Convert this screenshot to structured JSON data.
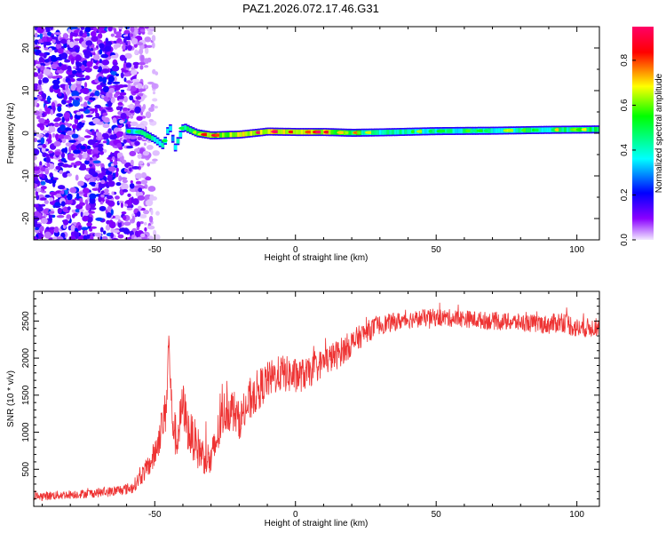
{
  "figure_title": "PAZ1.2026.072.17.46.G31",
  "chart_data": [
    {
      "type": "heatmap",
      "title": "PAZ1.2026.072.17.46.G31",
      "xlabel": "Height of straight line (km)",
      "ylabel": "Frequency (Hz)",
      "xlim": [
        -93,
        108
      ],
      "ylim": [
        -25,
        25
      ],
      "x_ticks": [
        -50,
        0,
        50,
        100
      ],
      "y_ticks": [
        -20,
        -10,
        0,
        10,
        20
      ],
      "colorbar": {
        "label": "Normalized spectral amplitude",
        "range": [
          0.0,
          0.95
        ],
        "ticks": [
          0.0,
          0.2,
          0.4,
          0.6,
          0.8
        ],
        "tick_labels": [
          "0.0",
          "0.2",
          "0.4",
          "0.6",
          "0.8"
        ],
        "colors": [
          "#f2e8ff",
          "#8a00ff",
          "#0000ff",
          "#00ffff",
          "#00ff00",
          "#ffff00",
          "#ff0000",
          "#ff0066"
        ]
      },
      "ridge": {
        "description": "dominant frequency line",
        "x": [
          -60,
          -55,
          -50,
          -47,
          -45,
          -43,
          -40,
          -35,
          -30,
          -20,
          -10,
          0,
          10,
          20,
          30,
          50,
          70,
          90,
          108
        ],
        "frequency": [
          0.5,
          0.3,
          -1.5,
          -3.0,
          2.0,
          -3.5,
          1.5,
          0.0,
          -0.5,
          -0.3,
          0.4,
          0.3,
          0.3,
          0.1,
          0.2,
          0.5,
          0.6,
          0.8,
          0.9
        ],
        "amplitude": [
          0.35,
          0.45,
          0.5,
          0.4,
          0.45,
          0.35,
          0.5,
          0.6,
          0.75,
          0.8,
          0.85,
          0.85,
          0.8,
          0.6,
          0.5,
          0.45,
          0.45,
          0.5,
          0.55
        ]
      },
      "noise_region": {
        "x_range": [
          -93,
          -55
        ],
        "frequency_range": [
          -25,
          25
        ],
        "amplitude_range": [
          0.05,
          0.25
        ]
      }
    },
    {
      "type": "line",
      "xlabel": "Height of straight line (km)",
      "ylabel": "SNR (10 * v/v)",
      "xlim": [
        -93,
        108
      ],
      "ylim": [
        0,
        2900
      ],
      "x_ticks": [
        -50,
        0,
        50,
        100
      ],
      "y_ticks": [
        500,
        1000,
        1500,
        2000,
        2500
      ],
      "series": [
        {
          "name": "SNR",
          "color": "#ee3333",
          "x": [
            -93,
            -85,
            -75,
            -65,
            -58,
            -55,
            -52,
            -50,
            -48,
            -46,
            -45,
            -44,
            -43,
            -42,
            -40,
            -38,
            -36,
            -35,
            -33,
            -30,
            -28,
            -26,
            -25,
            -22,
            -20,
            -15,
            -10,
            -5,
            0,
            5,
            10,
            15,
            20,
            25,
            30,
            40,
            50,
            60,
            70,
            80,
            90,
            95,
            100,
            108
          ],
          "y": [
            130,
            150,
            170,
            200,
            250,
            400,
            550,
            700,
            1000,
            1300,
            2250,
            1300,
            1000,
            900,
            1400,
            1000,
            900,
            800,
            700,
            600,
            900,
            1200,
            1300,
            1300,
            1150,
            1500,
            1700,
            1800,
            1750,
            1800,
            1950,
            2050,
            2200,
            2350,
            2450,
            2520,
            2550,
            2530,
            2500,
            2480,
            2450,
            2500,
            2400,
            2420
          ],
          "noise_amplitude": [
            60,
            60,
            60,
            70,
            80,
            120,
            150,
            200,
            250,
            300,
            200,
            300,
            300,
            300,
            300,
            300,
            300,
            300,
            250,
            250,
            300,
            300,
            300,
            300,
            250,
            300,
            250,
            250,
            250,
            200,
            200,
            200,
            180,
            150,
            130,
            120,
            120,
            120,
            120,
            120,
            130,
            150,
            140,
            120
          ]
        }
      ]
    }
  ]
}
